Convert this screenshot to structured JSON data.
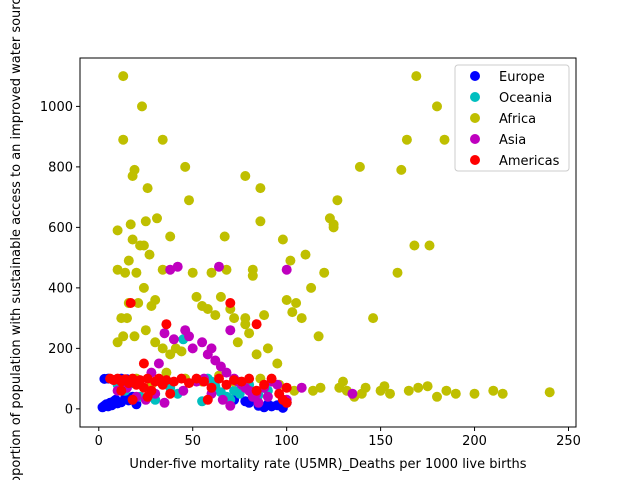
{
  "chart_data": {
    "type": "scatter",
    "title": "",
    "xlabel": "Under-five mortality rate (U5MR)_Deaths per 1000 live births",
    "ylabel": "Proportion of population with sustainable access to an improved water source",
    "xlim": [
      -10,
      254
    ],
    "ylim": [
      -60,
      1160
    ],
    "xticks": [
      0,
      50,
      100,
      150,
      200,
      250
    ],
    "yticks": [
      0,
      200,
      400,
      600,
      800,
      1000
    ],
    "grid": false,
    "legend_position": "top-right",
    "series": [
      {
        "name": "Europe",
        "color": "#0000ff",
        "points": [
          [
            2,
            5
          ],
          [
            3,
            10
          ],
          [
            4,
            15
          ],
          [
            5,
            8
          ],
          [
            6,
            20
          ],
          [
            7,
            12
          ],
          [
            8,
            25
          ],
          [
            9,
            30
          ],
          [
            10,
            18
          ],
          [
            12,
            22
          ],
          [
            14,
            35
          ],
          [
            16,
            28
          ],
          [
            18,
            40
          ],
          [
            20,
            15
          ],
          [
            5,
            100
          ],
          [
            8,
            95
          ],
          [
            10,
            90
          ],
          [
            12,
            100
          ],
          [
            15,
            98
          ],
          [
            3,
            99
          ],
          [
            80,
            20
          ],
          [
            85,
            10
          ],
          [
            88,
            5
          ],
          [
            90,
            15
          ],
          [
            92,
            8
          ],
          [
            95,
            12
          ],
          [
            98,
            3
          ],
          [
            100,
            20
          ],
          [
            72,
            30
          ],
          [
            78,
            25
          ]
        ]
      },
      {
        "name": "Oceania",
        "color": "#00bfbf",
        "points": [
          [
            10,
            80
          ],
          [
            14,
            60
          ],
          [
            18,
            85
          ],
          [
            22,
            40
          ],
          [
            30,
            30
          ],
          [
            38,
            70
          ],
          [
            42,
            50
          ],
          [
            45,
            230
          ],
          [
            55,
            25
          ],
          [
            58,
            100
          ],
          [
            60,
            90
          ],
          [
            62,
            75
          ],
          [
            65,
            55
          ],
          [
            68,
            40
          ],
          [
            70,
            30
          ],
          [
            72,
            60
          ],
          [
            75,
            50
          ],
          [
            80,
            80
          ],
          [
            85,
            45
          ],
          [
            90,
            60
          ]
        ]
      },
      {
        "name": "Africa",
        "color": "#bfbf00",
        "points": [
          [
            13,
            1100
          ],
          [
            23,
            1000
          ],
          [
            13,
            890
          ],
          [
            34,
            890
          ],
          [
            19,
            790
          ],
          [
            18,
            770
          ],
          [
            26,
            730
          ],
          [
            10,
            590
          ],
          [
            17,
            610
          ],
          [
            25,
            620
          ],
          [
            31,
            630
          ],
          [
            18,
            560
          ],
          [
            22,
            540
          ],
          [
            24,
            540
          ],
          [
            27,
            510
          ],
          [
            38,
            570
          ],
          [
            20,
            450
          ],
          [
            10,
            460
          ],
          [
            14,
            450
          ],
          [
            16,
            490
          ],
          [
            24,
            400
          ],
          [
            34,
            460
          ],
          [
            30,
            360
          ],
          [
            28,
            340
          ],
          [
            15,
            300
          ],
          [
            12,
            300
          ],
          [
            16,
            350
          ],
          [
            21,
            350
          ],
          [
            19,
            240
          ],
          [
            13,
            240
          ],
          [
            25,
            260
          ],
          [
            30,
            220
          ],
          [
            34,
            200
          ],
          [
            38,
            180
          ],
          [
            41,
            200
          ],
          [
            44,
            190
          ],
          [
            46,
            800
          ],
          [
            48,
            690
          ],
          [
            50,
            450
          ],
          [
            52,
            370
          ],
          [
            55,
            340
          ],
          [
            58,
            330
          ],
          [
            60,
            450
          ],
          [
            62,
            310
          ],
          [
            65,
            370
          ],
          [
            67,
            570
          ],
          [
            68,
            460
          ],
          [
            70,
            330
          ],
          [
            72,
            300
          ],
          [
            74,
            220
          ],
          [
            78,
            770
          ],
          [
            78,
            300
          ],
          [
            78,
            280
          ],
          [
            80,
            250
          ],
          [
            82,
            440
          ],
          [
            82,
            460
          ],
          [
            84,
            180
          ],
          [
            86,
            730
          ],
          [
            86,
            620
          ],
          [
            88,
            310
          ],
          [
            90,
            200
          ],
          [
            95,
            150
          ],
          [
            98,
            560
          ],
          [
            100,
            360
          ],
          [
            102,
            490
          ],
          [
            103,
            320
          ],
          [
            105,
            350
          ],
          [
            108,
            300
          ],
          [
            110,
            510
          ],
          [
            113,
            400
          ],
          [
            117,
            240
          ],
          [
            120,
            450
          ],
          [
            123,
            630
          ],
          [
            125,
            610
          ],
          [
            125,
            600
          ],
          [
            127,
            690
          ],
          [
            128,
            70
          ],
          [
            130,
            90
          ],
          [
            132,
            60
          ],
          [
            136,
            40
          ],
          [
            139,
            800
          ],
          [
            140,
            50
          ],
          [
            142,
            70
          ],
          [
            146,
            300
          ],
          [
            150,
            60
          ],
          [
            152,
            75
          ],
          [
            155,
            50
          ],
          [
            159,
            450
          ],
          [
            161,
            790
          ],
          [
            164,
            890
          ],
          [
            168,
            540
          ],
          [
            169,
            1100
          ],
          [
            176,
            540
          ],
          [
            180,
            1000
          ],
          [
            184,
            890
          ],
          [
            165,
            60
          ],
          [
            170,
            70
          ],
          [
            175,
            75
          ],
          [
            180,
            40
          ],
          [
            185,
            60
          ],
          [
            190,
            50
          ],
          [
            200,
            50
          ],
          [
            210,
            60
          ],
          [
            215,
            50
          ],
          [
            240,
            55
          ],
          [
            10,
            220
          ],
          [
            20,
            100
          ],
          [
            28,
            80
          ],
          [
            36,
            120
          ],
          [
            46,
            100
          ],
          [
            55,
            90
          ],
          [
            64,
            110
          ],
          [
            72,
            90
          ],
          [
            86,
            100
          ],
          [
            96,
            80
          ],
          [
            104,
            60
          ],
          [
            114,
            60
          ],
          [
            118,
            70
          ]
        ]
      },
      {
        "name": "Asia",
        "color": "#bf00bf",
        "points": [
          [
            38,
            460
          ],
          [
            42,
            470
          ],
          [
            64,
            470
          ],
          [
            100,
            460
          ],
          [
            35,
            250
          ],
          [
            40,
            230
          ],
          [
            46,
            260
          ],
          [
            48,
            240
          ],
          [
            50,
            200
          ],
          [
            55,
            220
          ],
          [
            58,
            180
          ],
          [
            60,
            200
          ],
          [
            62,
            160
          ],
          [
            65,
            140
          ],
          [
            68,
            120
          ],
          [
            70,
            260
          ],
          [
            72,
            100
          ],
          [
            74,
            90
          ],
          [
            76,
            80
          ],
          [
            78,
            70
          ],
          [
            80,
            60
          ],
          [
            84,
            50
          ],
          [
            88,
            70
          ],
          [
            92,
            90
          ],
          [
            95,
            80
          ],
          [
            108,
            70
          ],
          [
            135,
            50
          ],
          [
            10,
            60
          ],
          [
            15,
            70
          ],
          [
            20,
            40
          ],
          [
            25,
            30
          ],
          [
            30,
            50
          ],
          [
            35,
            20
          ],
          [
            45,
            60
          ],
          [
            52,
            90
          ],
          [
            56,
            100
          ],
          [
            60,
            50
          ],
          [
            66,
            30
          ],
          [
            70,
            10
          ],
          [
            82,
            40
          ],
          [
            85,
            20
          ],
          [
            90,
            40
          ],
          [
            100,
            30
          ],
          [
            28,
            120
          ],
          [
            32,
            150
          ]
        ]
      },
      {
        "name": "Americas",
        "color": "#ff0000",
        "points": [
          [
            17,
            350
          ],
          [
            36,
            280
          ],
          [
            70,
            350
          ],
          [
            84,
            280
          ],
          [
            6,
            100
          ],
          [
            8,
            95
          ],
          [
            10,
            100
          ],
          [
            12,
            90
          ],
          [
            14,
            98
          ],
          [
            16,
            85
          ],
          [
            18,
            100
          ],
          [
            20,
            80
          ],
          [
            22,
            95
          ],
          [
            24,
            70
          ],
          [
            26,
            100
          ],
          [
            28,
            60
          ],
          [
            30,
            90
          ],
          [
            32,
            100
          ],
          [
            34,
            80
          ],
          [
            36,
            95
          ],
          [
            40,
            90
          ],
          [
            44,
            100
          ],
          [
            48,
            85
          ],
          [
            52,
            100
          ],
          [
            56,
            90
          ],
          [
            60,
            70
          ],
          [
            64,
            100
          ],
          [
            68,
            80
          ],
          [
            72,
            95
          ],
          [
            76,
            90
          ],
          [
            80,
            100
          ],
          [
            84,
            60
          ],
          [
            88,
            80
          ],
          [
            92,
            100
          ],
          [
            96,
            50
          ],
          [
            98,
            30
          ],
          [
            100,
            20
          ],
          [
            100,
            70
          ],
          [
            24,
            150
          ],
          [
            12,
            60
          ],
          [
            18,
            30
          ],
          [
            26,
            40
          ],
          [
            38,
            50
          ],
          [
            58,
            30
          ]
        ]
      }
    ]
  }
}
